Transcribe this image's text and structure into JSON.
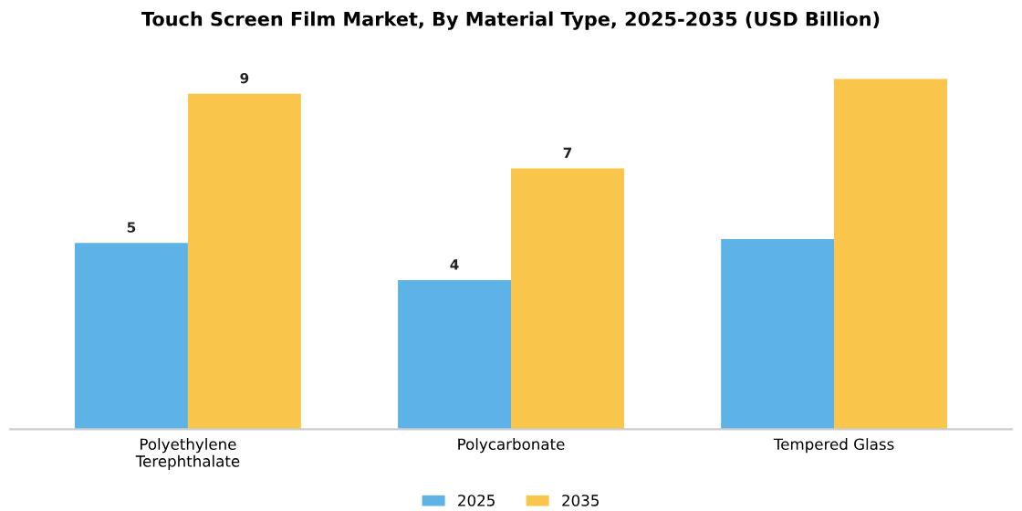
{
  "chart_data": {
    "type": "bar",
    "title": "Touch Screen Film Market, By Material Type, 2025-2035 (USD Billion)",
    "categories": [
      "Polyethylene\nTerephthalate",
      "Polycarbonate",
      "Tempered Glass"
    ],
    "series": [
      {
        "name": "2025",
        "color": "#5db3e6",
        "values": [
          5,
          4,
          5.1
        ],
        "value_labels": [
          "5",
          "4",
          null
        ]
      },
      {
        "name": "2035",
        "color": "#f9c54a",
        "values": [
          9,
          7,
          9.4
        ],
        "value_labels": [
          "9",
          "7",
          null
        ]
      }
    ],
    "legend": "bottom",
    "grid": false
  }
}
